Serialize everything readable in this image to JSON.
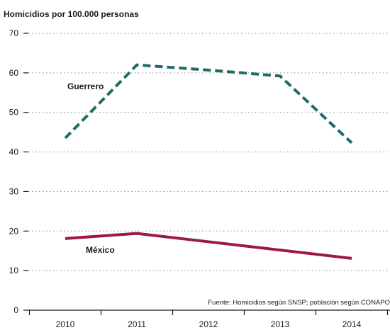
{
  "chart_data": {
    "type": "line",
    "title": "Homicidios por 100.000 personas",
    "xlabel": "",
    "ylabel": "",
    "x": [
      "2010",
      "2011",
      "2012",
      "2013",
      "2014"
    ],
    "ylim": [
      0,
      70
    ],
    "yticks": [
      0,
      10,
      20,
      30,
      40,
      50,
      60,
      70
    ],
    "grid": true,
    "series": [
      {
        "name": "Guerrero",
        "values": [
          43.5,
          62.0,
          60.7,
          59.2,
          42.3
        ],
        "color": "#1f6b66",
        "style": "dashed"
      },
      {
        "name": "México",
        "values": [
          18.1,
          19.4,
          null,
          null,
          13.1
        ],
        "color": "#9c1a45",
        "style": "solid"
      }
    ],
    "source": "Fuente: Homicidios según SNSP; población según CONAPO"
  }
}
